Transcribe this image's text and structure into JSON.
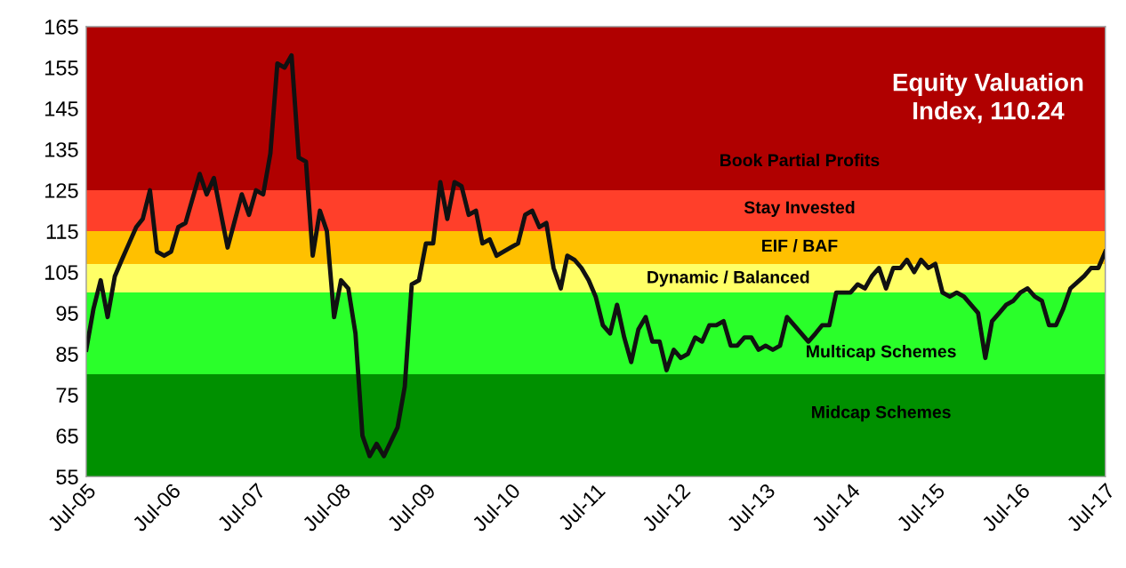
{
  "chart_data": {
    "type": "line",
    "title": "Equity Valuation\nIndex, 110.24",
    "x": [
      "2005-07",
      "2005-08",
      "2005-09",
      "2005-10",
      "2005-11",
      "2005-12",
      "2006-01",
      "2006-02",
      "2006-03",
      "2006-04",
      "2006-05",
      "2006-06",
      "2006-07",
      "2006-08",
      "2006-09",
      "2006-11",
      "2006-12",
      "2007-01",
      "2007-03",
      "2007-05",
      "2007-06",
      "2007-07",
      "2007-08",
      "2007-09",
      "2007-10",
      "2007-11",
      "2007-12",
      "2008-01",
      "2008-02",
      "2008-03",
      "2008-04",
      "2008-05",
      "2008-06",
      "2008-07",
      "2008-08",
      "2008-09",
      "2008-10",
      "2008-11",
      "2008-12",
      "2009-01",
      "2009-03",
      "2009-04",
      "2009-05",
      "2009-06",
      "2009-07",
      "2009-08",
      "2009-09",
      "2009-10",
      "2009-11",
      "2009-12",
      "2010-01",
      "2010-02",
      "2010-03",
      "2010-04",
      "2010-05",
      "2010-07",
      "2010-08",
      "2010-09",
      "2010-10",
      "2010-11",
      "2010-12",
      "2011-01",
      "2011-02",
      "2011-03",
      "2011-04",
      "2011-05",
      "2011-06",
      "2011-07",
      "2011-08",
      "2011-09",
      "2011-10",
      "2011-11",
      "2011-12",
      "2012-01",
      "2012-02",
      "2012-03",
      "2012-04",
      "2012-05",
      "2012-06",
      "2012-07",
      "2012-08",
      "2012-09",
      "2012-10",
      "2012-11",
      "2012-12",
      "2013-01",
      "2013-02",
      "2013-03",
      "2013-04",
      "2013-05",
      "2013-06",
      "2013-07",
      "2013-08",
      "2013-09",
      "2013-10",
      "2013-11",
      "2014-01",
      "2014-02",
      "2014-03",
      "2014-04",
      "2014-05",
      "2014-07",
      "2014-08",
      "2014-09",
      "2014-10",
      "2014-11",
      "2014-12",
      "2015-01",
      "2015-02",
      "2015-03",
      "2015-04",
      "2015-05",
      "2015-06",
      "2015-07",
      "2015-08",
      "2015-09",
      "2015-10",
      "2015-11",
      "2016-01",
      "2016-02",
      "2016-03",
      "2016-04",
      "2016-05",
      "2016-06",
      "2016-07",
      "2016-08",
      "2016-09",
      "2016-10",
      "2016-11",
      "2016-12",
      "2017-01",
      "2017-02",
      "2017-04",
      "2017-05",
      "2017-06",
      "2017-07"
    ],
    "series": [
      {
        "color": "#111111",
        "values": [
          86,
          96,
          103,
          94,
          104,
          108,
          112,
          116,
          118,
          125,
          110,
          109,
          110,
          116,
          117,
          129,
          124,
          128,
          111,
          124,
          119,
          125,
          124,
          134,
          156,
          155,
          158,
          133,
          132,
          109,
          120,
          115,
          94,
          103,
          101,
          90,
          65,
          60,
          63,
          60,
          67,
          77,
          102,
          103,
          112,
          112,
          127,
          118,
          127,
          126,
          119,
          120,
          112,
          113,
          109,
          111,
          112,
          119,
          120,
          116,
          117,
          106,
          101,
          109,
          108,
          106,
          103,
          99,
          92,
          90,
          97,
          89,
          83,
          91,
          94,
          88,
          88,
          81,
          86,
          84,
          85,
          89,
          88,
          92,
          92,
          93,
          87,
          87,
          89,
          89,
          86,
          87,
          86,
          87,
          94,
          92,
          88,
          90,
          92,
          92,
          100,
          100,
          102,
          101,
          104,
          106,
          101,
          106,
          106,
          108,
          105,
          108,
          106,
          107,
          100,
          99,
          100,
          99,
          95,
          84,
          93,
          95,
          97,
          98,
          100,
          101,
          99,
          98,
          92,
          92,
          96,
          101,
          104,
          106,
          106,
          110
        ]
      }
    ],
    "xlim": [
      "2005-07",
      "2017-07"
    ],
    "xticks": [
      {
        "value": "2005-07",
        "label": "Jul-05"
      },
      {
        "value": "2006-07",
        "label": "Jul-06"
      },
      {
        "value": "2007-07",
        "label": "Jul-07"
      },
      {
        "value": "2008-07",
        "label": "Jul-08"
      },
      {
        "value": "2009-07",
        "label": "Jul-09"
      },
      {
        "value": "2010-07",
        "label": "Jul-10"
      },
      {
        "value": "2011-07",
        "label": "Jul-11"
      },
      {
        "value": "2012-07",
        "label": "Jul-12"
      },
      {
        "value": "2013-07",
        "label": "Jul-13"
      },
      {
        "value": "2014-07",
        "label": "Jul-14"
      },
      {
        "value": "2015-07",
        "label": "Jul-15"
      },
      {
        "value": "2016-07",
        "label": "Jul-16"
      },
      {
        "value": "2017-07",
        "label": "Jul-17"
      }
    ],
    "ylim": [
      55,
      165
    ],
    "yticks": [
      55,
      65,
      75,
      85,
      95,
      105,
      115,
      125,
      135,
      145,
      155,
      165
    ],
    "bands": [
      {
        "axis": "y",
        "from": 125,
        "to": 165,
        "label": "Book Partial Profits",
        "color": "#b00000"
      },
      {
        "axis": "y",
        "from": 115,
        "to": 125,
        "label": "Stay Invested",
        "color": "#ff3f2a"
      },
      {
        "axis": "y",
        "from": 107,
        "to": 115,
        "label": "EIF / BAF",
        "color": "#ffc000"
      },
      {
        "axis": "y",
        "from": 100,
        "to": 107,
        "label": "Dynamic / Balanced",
        "color": "#ffff66"
      },
      {
        "axis": "y",
        "from": 80,
        "to": 100,
        "label": "Multicap Schemes",
        "color": "#2aff2a"
      },
      {
        "axis": "y",
        "from": 55,
        "to": 80,
        "label": "Midcap Schemes",
        "color": "#009000"
      }
    ],
    "grid": false,
    "legend": false,
    "marker": "none",
    "line_style": "solid"
  }
}
